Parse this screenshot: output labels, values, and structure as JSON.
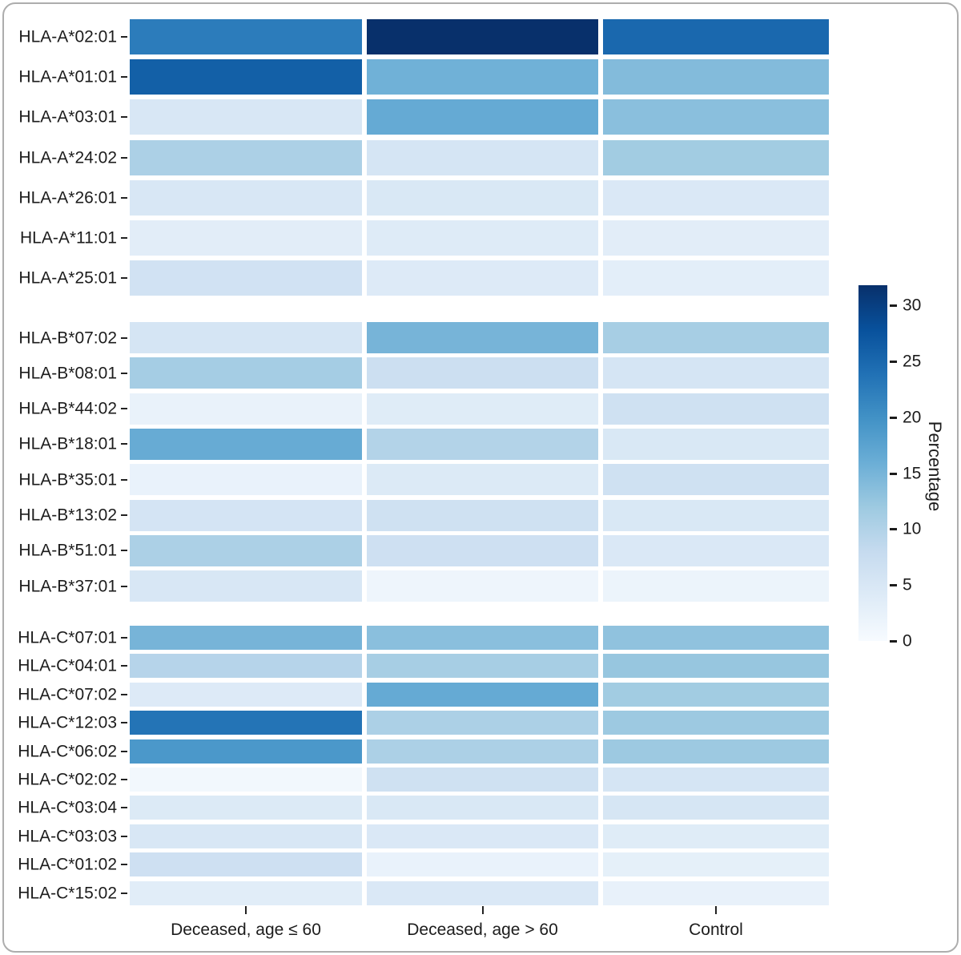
{
  "chart_data": {
    "type": "heatmap",
    "title": "",
    "columns": [
      "Deceased, age ≤ 60",
      "Deceased, age > 60",
      "Control"
    ],
    "legend": {
      "title": "Percentage",
      "ticks": [
        0,
        5,
        10,
        15,
        20,
        25,
        30
      ],
      "domain": [
        0,
        31.8
      ],
      "colormap": [
        "#f7fbff",
        "#deebf7",
        "#c6dbef",
        "#9ecae1",
        "#6baed6",
        "#4292c6",
        "#2171b5",
        "#08519c",
        "#08306b"
      ],
      "legend_position": "right"
    },
    "grid": false,
    "facets": [
      {
        "group": "HLA-A",
        "rows": [
          {
            "label": "HLA-A*02:01",
            "values": [
              22.5,
              31.8,
              25.0
            ]
          },
          {
            "label": "HLA-A*01:01",
            "values": [
              26.0,
              15.5,
              14.0
            ]
          },
          {
            "label": "HLA-A*03:01",
            "values": [
              5.0,
              16.5,
              13.5
            ]
          },
          {
            "label": "HLA-A*24:02",
            "values": [
              10.5,
              5.5,
              11.5
            ]
          },
          {
            "label": "HLA-A*26:01",
            "values": [
              5.0,
              4.8,
              4.6
            ]
          },
          {
            "label": "HLA-A*11:01",
            "values": [
              3.4,
              3.9,
              3.4
            ]
          },
          {
            "label": "HLA-A*25:01",
            "values": [
              6.2,
              4.2,
              3.2
            ]
          }
        ]
      },
      {
        "group": "HLA-B",
        "rows": [
          {
            "label": "HLA-B*07:02",
            "values": [
              5.4,
              15.0,
              11.0
            ]
          },
          {
            "label": "HLA-B*08:01",
            "values": [
              11.2,
              7.0,
              5.4
            ]
          },
          {
            "label": "HLA-B*44:02",
            "values": [
              2.3,
              3.8,
              6.4
            ]
          },
          {
            "label": "HLA-B*18:01",
            "values": [
              16.3,
              9.8,
              4.8
            ]
          },
          {
            "label": "HLA-B*35:01",
            "values": [
              2.2,
              4.3,
              6.4
            ]
          },
          {
            "label": "HLA-B*13:02",
            "values": [
              5.6,
              6.5,
              4.8
            ]
          },
          {
            "label": "HLA-B*51:01",
            "values": [
              10.5,
              6.6,
              4.7
            ]
          },
          {
            "label": "HLA-B*37:01",
            "values": [
              4.9,
              1.5,
              1.8
            ]
          }
        ]
      },
      {
        "group": "HLA-C",
        "rows": [
          {
            "label": "HLA-C*07:01",
            "values": [
              15.0,
              13.5,
              13.0
            ]
          },
          {
            "label": "HLA-C*04:01",
            "values": [
              9.5,
              11.0,
              12.5
            ]
          },
          {
            "label": "HLA-C*07:02",
            "values": [
              4.2,
              16.5,
              11.5
            ]
          },
          {
            "label": "HLA-C*12:03",
            "values": [
              23.5,
              10.5,
              12.0
            ]
          },
          {
            "label": "HLA-C*06:02",
            "values": [
              19.0,
              10.5,
              12.0
            ]
          },
          {
            "label": "HLA-C*02:02",
            "values": [
              0.8,
              6.5,
              5.4
            ]
          },
          {
            "label": "HLA-C*03:04",
            "values": [
              4.3,
              4.8,
              5.3
            ]
          },
          {
            "label": "HLA-C*03:03",
            "values": [
              5.0,
              4.6,
              3.8
            ]
          },
          {
            "label": "HLA-C*01:02",
            "values": [
              6.7,
              2.2,
              2.8
            ]
          },
          {
            "label": "HLA-C*15:02",
            "values": [
              3.5,
              4.6,
              2.4
            ]
          }
        ]
      }
    ]
  }
}
